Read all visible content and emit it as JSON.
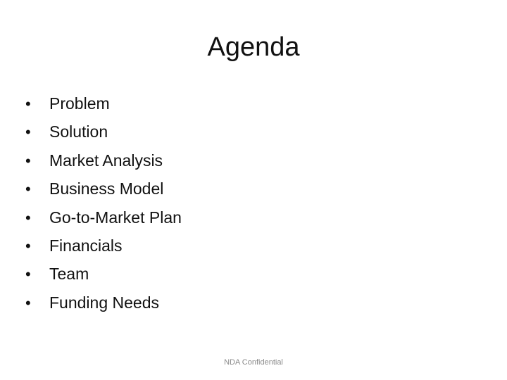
{
  "slide": {
    "title": "Agenda",
    "bullet_symbol": "•",
    "items": [
      {
        "label": "Problem"
      },
      {
        "label": "Solution"
      },
      {
        "label": "Market Analysis"
      },
      {
        "label": "Business Model"
      },
      {
        "label": "Go-to-Market Plan"
      },
      {
        "label": "Financials"
      },
      {
        "label": "Team"
      },
      {
        "label": "Funding Needs"
      }
    ],
    "footer": "NDA Confidential"
  }
}
